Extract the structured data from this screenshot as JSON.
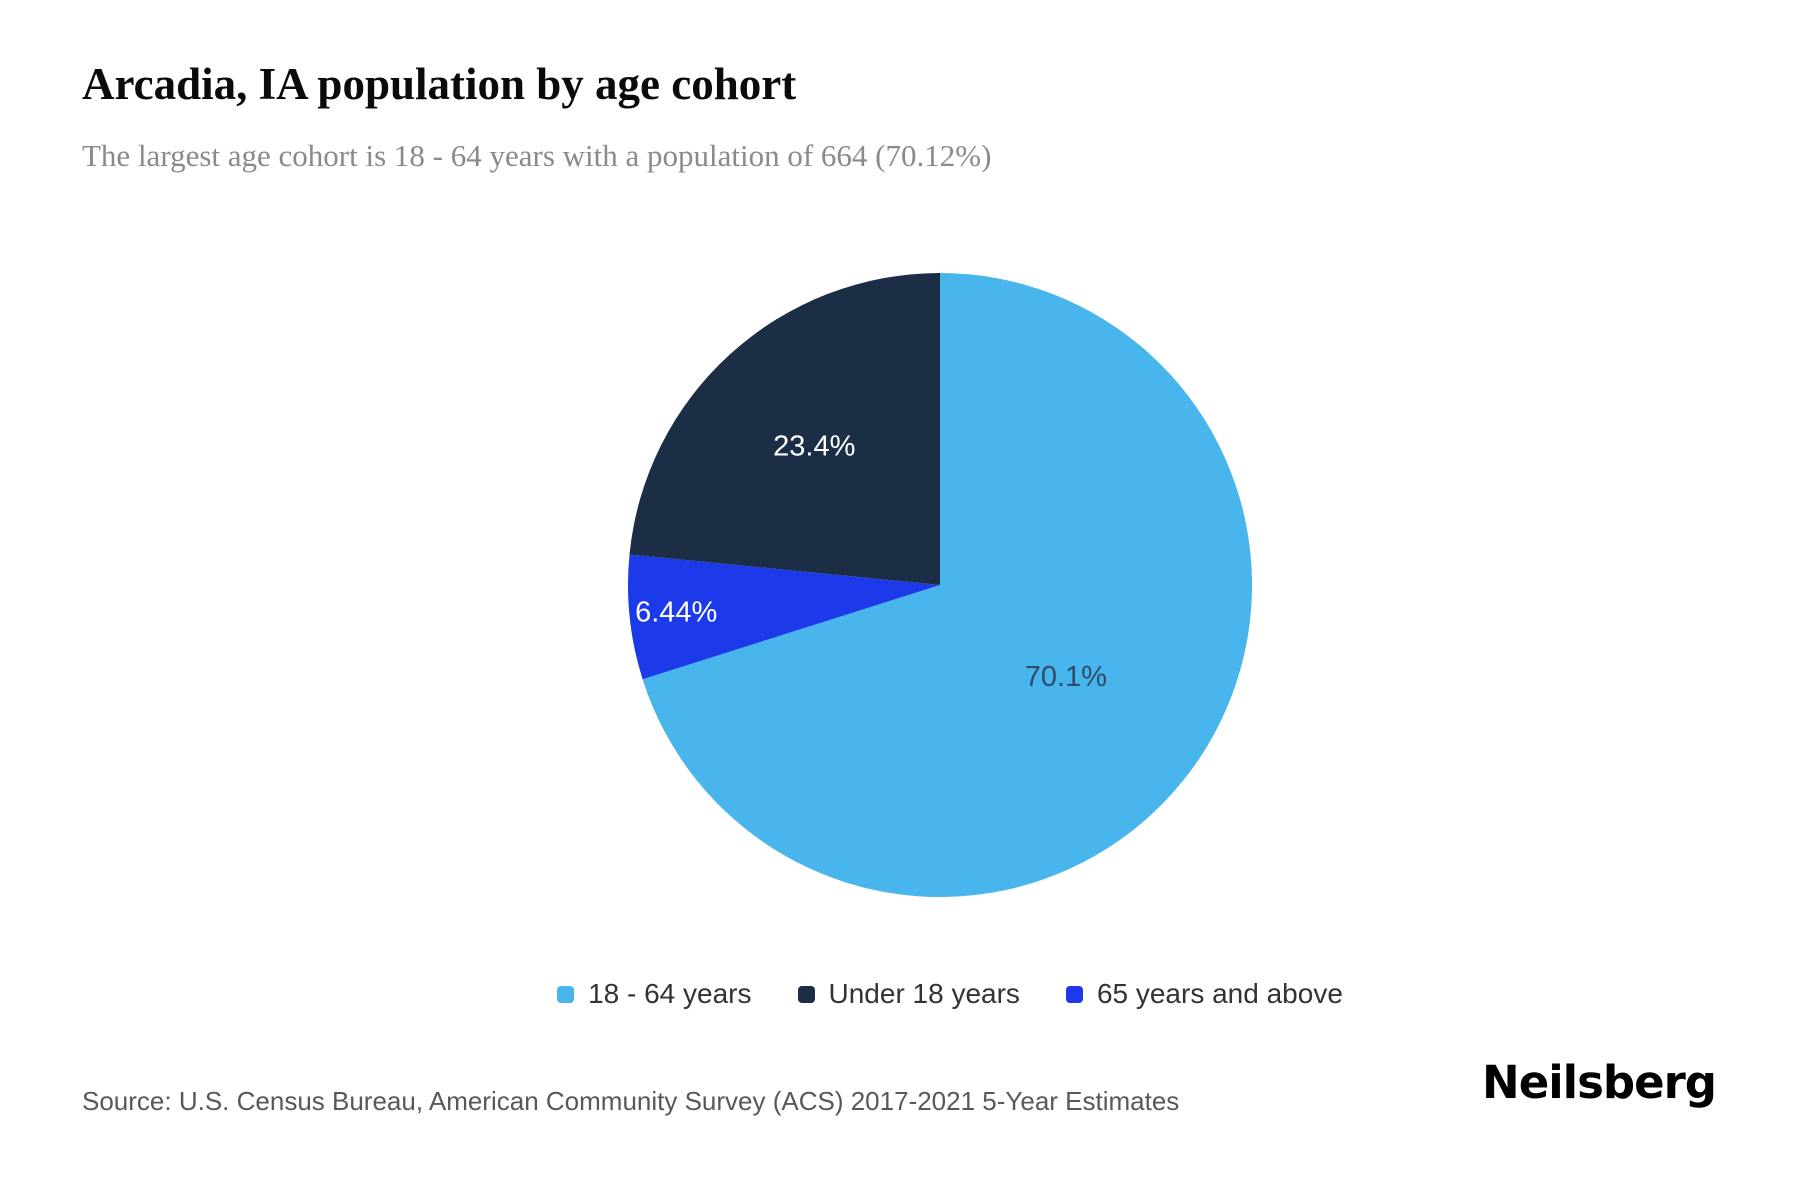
{
  "header": {
    "title": "Arcadia, IA population by age cohort",
    "subtitle": "The largest age cohort is 18 - 64 years with a population of 664 (70.12%)"
  },
  "chart_data": {
    "type": "pie",
    "title": "Arcadia, IA population by age cohort",
    "subtitle": "The largest age cohort is 18 - 64 years with a population of 664 (70.12%)",
    "start_angle_deg": 0,
    "direction": "clockwise",
    "legend_position": "bottom",
    "series": [
      {
        "name": "18 - 64 years",
        "value": 70.12,
        "label": "70.1%",
        "color": "#48b5ec",
        "label_color": "#2e4d68",
        "label_distance_frac": 0.5
      },
      {
        "name": "65 years and above",
        "value": 6.44,
        "label": "6.44%",
        "color": "#1c39ea",
        "label_color": "#ffffff",
        "label_distance_frac": 0.85
      },
      {
        "name": "Under 18 years",
        "value": 23.44,
        "label": "23.4%",
        "color": "#1c2e45",
        "label_color": "#ffffff",
        "label_distance_frac": 0.6
      }
    ]
  },
  "legend": {
    "items": [
      {
        "label": "18 - 64 years",
        "color": "#48b5ec"
      },
      {
        "label": "Under 18 years",
        "color": "#1c2e45"
      },
      {
        "label": "65 years and above",
        "color": "#1c39ea"
      }
    ]
  },
  "footer": {
    "source": "Source: U.S. Census Bureau, American Community Survey (ACS) 2017-2021 5-Year Estimates",
    "brand": "Neilsberg"
  }
}
